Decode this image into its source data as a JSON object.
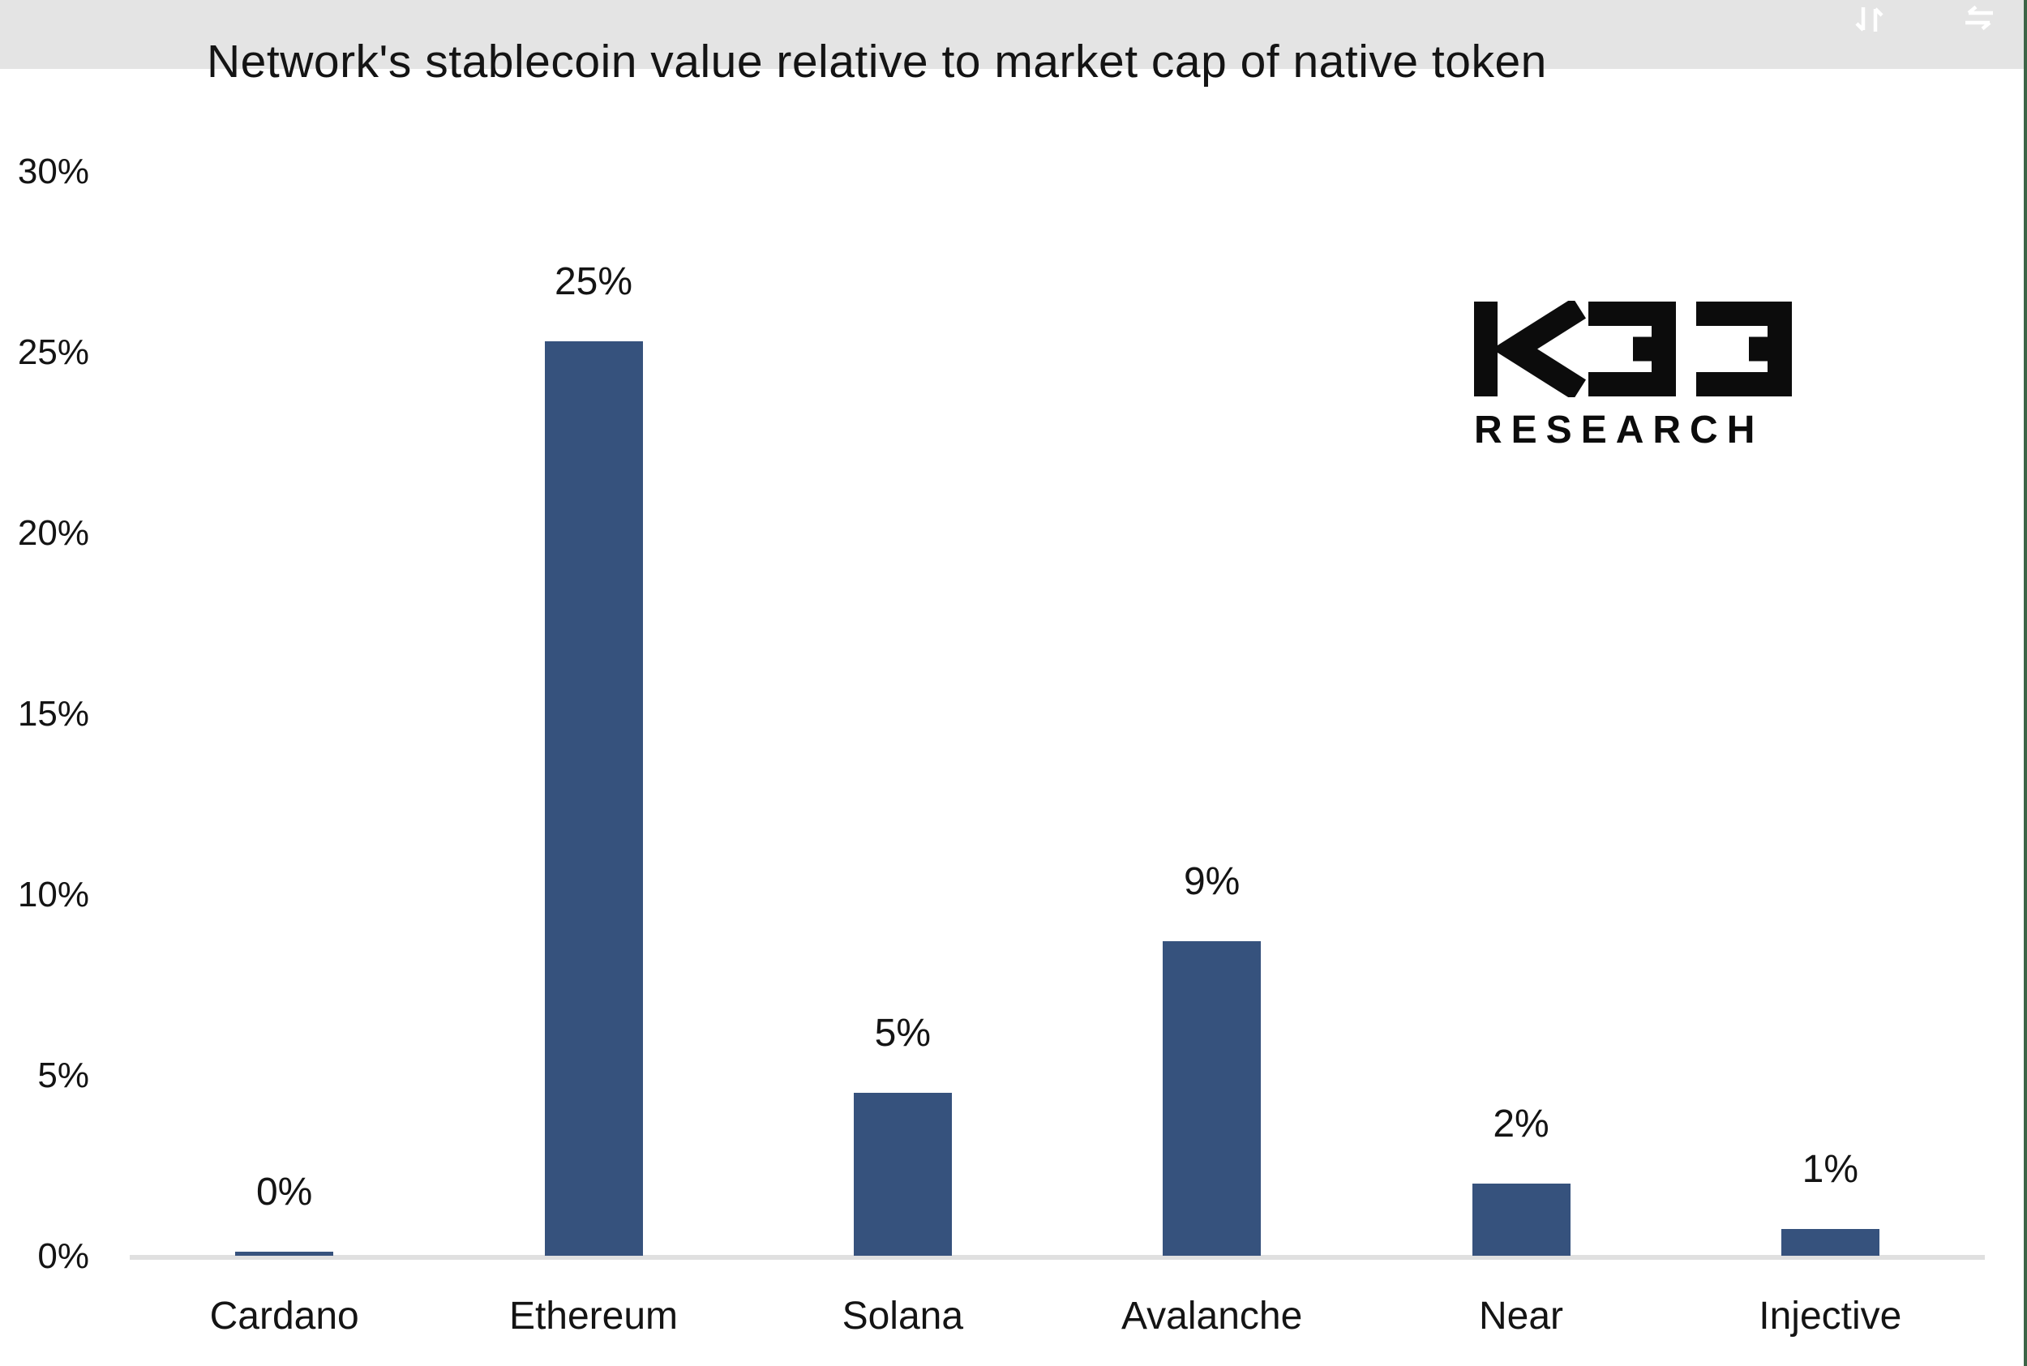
{
  "title": "Network's stablecoin value relative to market cap of native token",
  "logo": {
    "brand": "K33",
    "sub": "RESEARCH"
  },
  "header_icons": {
    "sort": "sort-arrows-icon",
    "swap": "swap-arrows-icon"
  },
  "colors": {
    "bar": "#36527D",
    "top_band": "#E4E4E4",
    "axis_line": "#E0E0E0",
    "right_border": "#3C6446",
    "text": "#141414",
    "icon": "#FFFFFF"
  },
  "chart_data": {
    "type": "bar",
    "title": "Network's stablecoin value relative to market cap of native token",
    "categories": [
      "Cardano",
      "Ethereum",
      "Solana",
      "Avalanche",
      "Near",
      "Injective"
    ],
    "values": [
      0,
      25,
      5,
      9,
      2,
      1
    ],
    "value_labels": [
      "0%",
      "25%",
      "5%",
      "9%",
      "2%",
      "1%"
    ],
    "values_precise_est": [
      0.1,
      25.3,
      4.5,
      8.7,
      2.0,
      0.75
    ],
    "xlabel": "",
    "ylabel": "",
    "ylim": [
      0,
      30
    ],
    "y_tick_labels": [
      "30%",
      "25%",
      "20%",
      "15%",
      "10%",
      "5%",
      "0%"
    ],
    "grid": false,
    "legend": "none",
    "data_labels": "above-bars",
    "bar_color": "#36527D"
  }
}
